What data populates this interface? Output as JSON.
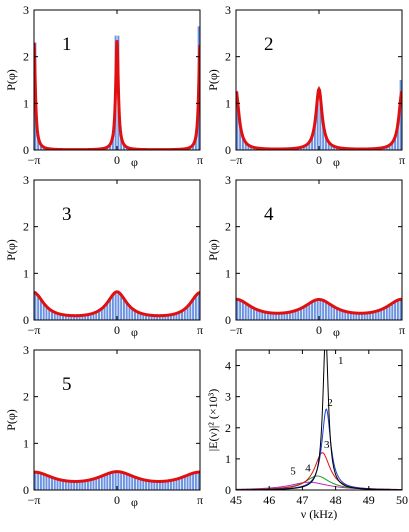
{
  "chart_data": [
    {
      "type": "bar",
      "panel": "1",
      "xlabel": "φ",
      "ylabel": "P(φ)",
      "xlim": [
        -3.1416,
        3.1416
      ],
      "ylim": [
        0,
        3
      ],
      "xticks": [
        "−π",
        "0",
        "π"
      ],
      "yticks": [
        "0",
        "1",
        "2",
        "3"
      ],
      "series": [
        {
          "kind": "histogram",
          "color": "#3b6fd8",
          "peak_values": [
            2.3,
            2.45,
            2.65
          ]
        },
        {
          "kind": "curve",
          "color": "#e01010",
          "peak_values": [
            2.3,
            2.35,
            2.25
          ],
          "width": 0.06
        }
      ]
    },
    {
      "type": "bar",
      "panel": "2",
      "xlabel": "φ",
      "ylabel": "P(φ)",
      "xlim": [
        -3.1416,
        3.1416
      ],
      "ylim": [
        0,
        3
      ],
      "xticks": [
        "−π",
        "0",
        "π"
      ],
      "yticks": [
        "0",
        "1",
        "2",
        "3"
      ],
      "series": [
        {
          "kind": "histogram",
          "color": "#3b6fd8",
          "peak_values": [
            1.25,
            1.2,
            1.5
          ]
        },
        {
          "kind": "curve",
          "color": "#e01010",
          "peak_values": [
            1.25,
            1.3,
            1.25
          ],
          "width": 0.14
        }
      ]
    },
    {
      "type": "bar",
      "panel": "3",
      "xlabel": "φ",
      "ylabel": "P(φ)",
      "xlim": [
        -3.1416,
        3.1416
      ],
      "ylim": [
        0,
        3
      ],
      "xticks": [
        "−π",
        "0",
        "π"
      ],
      "yticks": [
        "0",
        "1",
        "2",
        "3"
      ],
      "series": [
        {
          "kind": "histogram",
          "color": "#3b6fd8",
          "peak_values": [
            0.62,
            0.62,
            0.55
          ]
        },
        {
          "kind": "curve",
          "color": "#e01010",
          "peak_values": [
            0.57,
            0.58,
            0.57
          ],
          "width": 0.45
        }
      ]
    },
    {
      "type": "bar",
      "panel": "4",
      "xlabel": "φ",
      "ylabel": "P(φ)",
      "xlim": [
        -3.1416,
        3.1416
      ],
      "ylim": [
        0,
        3
      ],
      "xticks": [
        "−π",
        "0",
        "π"
      ],
      "yticks": [
        "0",
        "1",
        "2",
        "3"
      ],
      "series": [
        {
          "kind": "histogram",
          "color": "#3b6fd8",
          "peak_values": [
            0.42,
            0.45,
            0.4
          ]
        },
        {
          "kind": "curve",
          "color": "#e01010",
          "peak_values": [
            0.42,
            0.4,
            0.42
          ],
          "width": 0.7
        }
      ]
    },
    {
      "type": "bar",
      "panel": "5",
      "xlabel": "φ",
      "ylabel": "P(φ)",
      "xlim": [
        -3.1416,
        3.1416
      ],
      "ylim": [
        0,
        3
      ],
      "xticks": [
        "−π",
        "0",
        "π"
      ],
      "yticks": [
        "0",
        "1",
        "2",
        "3"
      ],
      "series": [
        {
          "kind": "histogram",
          "color": "#3b6fd8",
          "peak_values": [
            0.35,
            0.38,
            0.36
          ]
        },
        {
          "kind": "curve",
          "color": "#e01010",
          "peak_values": [
            0.35,
            0.34,
            0.35
          ],
          "width": 0.9
        }
      ]
    },
    {
      "type": "line",
      "panel": "spectrum",
      "xlabel": "ν (kHz)",
      "ylabel": "|E(ν)|² (×10³)",
      "xlim": [
        45,
        50
      ],
      "ylim": [
        0,
        4.5
      ],
      "xticks": [
        "45",
        "46",
        "47",
        "48",
        "49",
        "50"
      ],
      "yticks": [
        "0",
        "1",
        "2",
        "3",
        "4"
      ],
      "series": [
        {
          "name": "1",
          "color": "#000000",
          "center": 47.7,
          "peak": 5.0,
          "width": 0.1
        },
        {
          "name": "2",
          "color": "#1a3fd8",
          "center": 47.72,
          "peak": 2.6,
          "width": 0.16
        },
        {
          "name": "3",
          "color": "#e01010",
          "center": 47.6,
          "peak": 1.2,
          "width": 0.28
        },
        {
          "name": "4",
          "color": "#1a9a1a",
          "center": 47.45,
          "peak": 0.45,
          "width": 0.45
        },
        {
          "name": "5",
          "color": "#c020c0",
          "center": 47.2,
          "peak": 0.25,
          "width": 0.7
        }
      ]
    }
  ]
}
